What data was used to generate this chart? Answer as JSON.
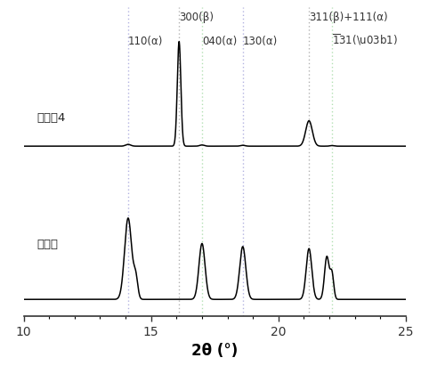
{
  "xlim": [
    10,
    25
  ],
  "xlabel": "2θ (°)",
  "xlabel_fontsize": 12,
  "xlabel_fontweight": "bold",
  "vlines": [
    14.1,
    16.1,
    17.0,
    18.6,
    21.2,
    22.1
  ],
  "vline_colors": [
    "#aaaadd",
    "#aaaaaa",
    "#aaddaa",
    "#aaaadd",
    "#aaaaaa",
    "#aaddaa"
  ],
  "label1": "实施兦4",
  "label2": "聚丙烯",
  "background_color": "#ffffff",
  "line_color": "#000000"
}
